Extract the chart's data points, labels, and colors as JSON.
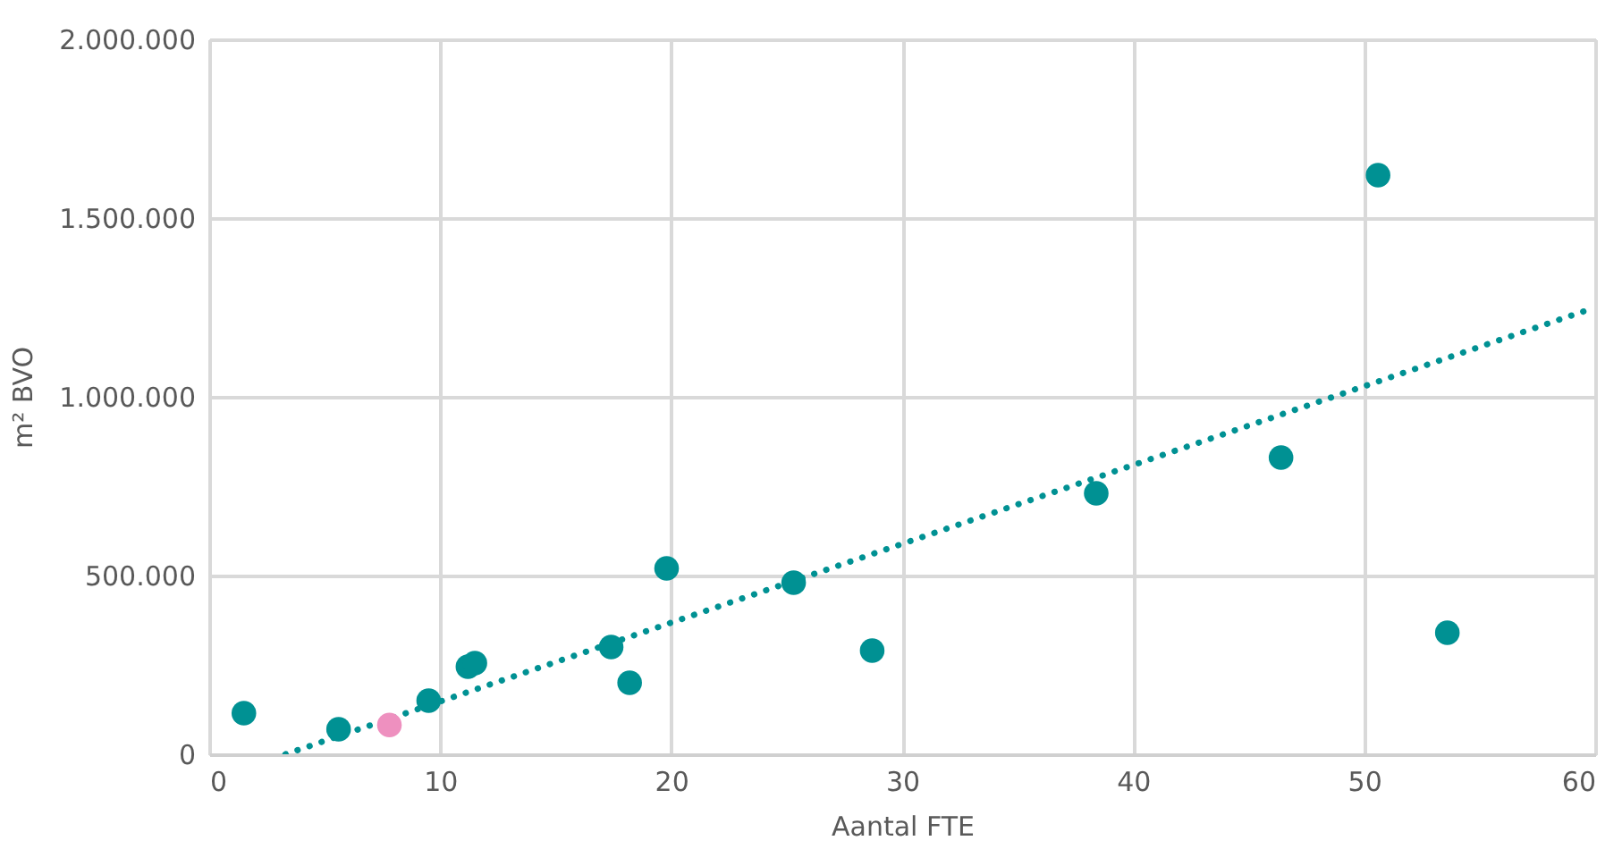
{
  "chart_data": {
    "type": "scatter",
    "xlabel": "Aantal FTE",
    "ylabel": "m² BVO",
    "xlim": [
      0,
      60
    ],
    "xticks": [
      0,
      10,
      20,
      30,
      40,
      50,
      60
    ],
    "ylim": [
      0,
      2000000
    ],
    "yticks": [
      {
        "value": 0,
        "label": "0"
      },
      {
        "value": 500000,
        "label": "500.000"
      },
      {
        "value": 1000000,
        "label": "1.000.000"
      },
      {
        "value": 1500000,
        "label": "1.500.000"
      },
      {
        "value": 2000000,
        "label": "2.000.000"
      }
    ],
    "grid": true,
    "marker": "circle",
    "series": [
      {
        "type": "line",
        "color": "#009193",
        "line_style": "dotted",
        "marker": "none",
        "x": [
          3.3,
          60
        ],
        "values": [
          0,
          1250000
        ]
      },
      {
        "color": "#009193",
        "x": [
          1.5,
          5.6,
          9.5,
          11.2,
          11.5,
          17.4,
          18.2,
          19.8,
          25.3,
          28.7,
          38.4,
          46.4,
          50.6,
          53.6
        ],
        "values": [
          115000,
          70000,
          150000,
          245000,
          255000,
          300000,
          200000,
          520000,
          480000,
          290000,
          730000,
          830000,
          1620000,
          340000
        ]
      },
      {
        "color": "#ee90bf",
        "x": [
          7.8
        ],
        "values": [
          82000
        ]
      }
    ]
  }
}
